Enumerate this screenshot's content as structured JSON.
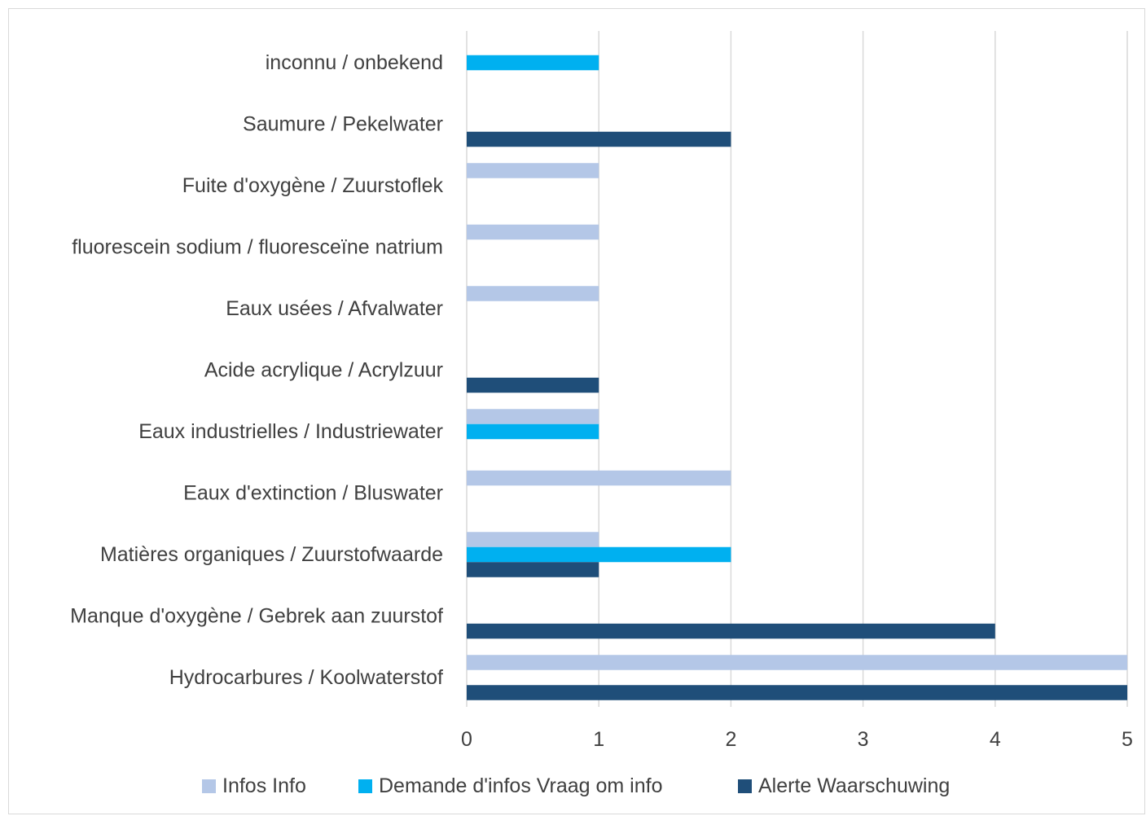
{
  "chart_data": {
    "type": "bar",
    "orientation": "horizontal",
    "title": "",
    "xlabel": "",
    "ylabel": "",
    "xlim": [
      0,
      5
    ],
    "x_ticks": [
      0,
      1,
      2,
      3,
      4,
      5
    ],
    "grid": "vertical",
    "legend_position": "bottom",
    "categories": [
      "inconnu / onbekend",
      "Saumure / Pekelwater",
      "Fuite d'oxygène / Zuurstoflek",
      "fluorescein sodium / fluoresceïne natrium",
      "Eaux usées / Afvalwater",
      "Acide acrylique / Acrylzuur",
      "Eaux industrielles / Industriewater",
      "Eaux d'extinction / Bluswater",
      "Matières organiques / Zuurstofwaarde",
      "Manque d'oxygène / Gebrek aan zuurstof",
      "Hydrocarbures / Koolwaterstof"
    ],
    "series": [
      {
        "name": "Infos Info",
        "color": "#b4c7e7",
        "values": [
          0,
          0,
          1,
          1,
          1,
          0,
          1,
          2,
          1,
          0,
          5
        ]
      },
      {
        "name": "Demande d'infos Vraag om info",
        "color": "#00b0f0",
        "values": [
          1,
          0,
          0,
          0,
          0,
          0,
          1,
          0,
          2,
          0,
          0
        ]
      },
      {
        "name": "Alerte Waarschuwing",
        "color": "#1f4e79",
        "values": [
          0,
          2,
          0,
          0,
          0,
          1,
          0,
          0,
          1,
          4,
          5
        ]
      }
    ]
  }
}
